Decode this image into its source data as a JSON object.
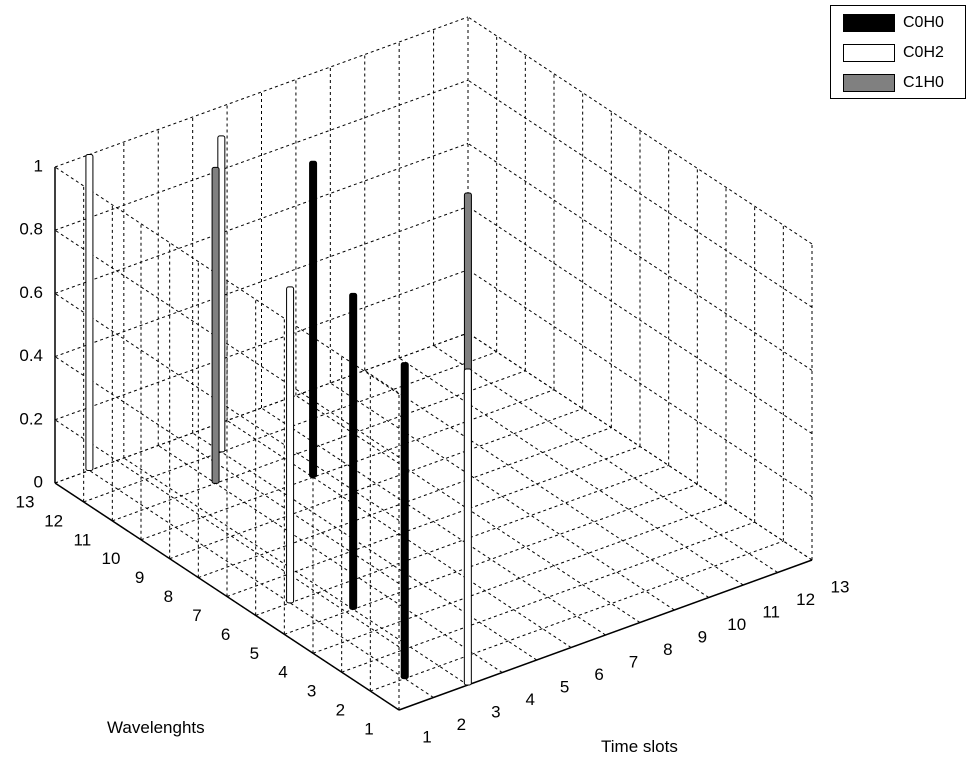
{
  "chart_data": {
    "type": "bar3d",
    "xlabel": "Time slots",
    "ylabel": "Wavelenghts",
    "zlabel": "",
    "x_ticks": [
      "1",
      "2",
      "3",
      "4",
      "5",
      "6",
      "7",
      "8",
      "9",
      "10",
      "11",
      "12",
      "13"
    ],
    "y_ticks": [
      "1",
      "2",
      "3",
      "4",
      "5",
      "6",
      "7",
      "8",
      "9",
      "10",
      "11",
      "12",
      "13"
    ],
    "z_ticks": [
      "0",
      "0.2",
      "0.4",
      "0.6",
      "0.8",
      "1"
    ],
    "zlim": [
      0,
      1
    ],
    "grid": true,
    "legend_position": "top-right",
    "series": [
      {
        "name": "C0H0",
        "color": "#000000",
        "points": [
          {
            "x": 2,
            "y": 2,
            "z": 1
          },
          {
            "x": 3,
            "y": 5,
            "z": 1
          },
          {
            "x": 6,
            "y": 10,
            "z": 1
          }
        ]
      },
      {
        "name": "C0H2",
        "color": "#ffffff",
        "points": [
          {
            "x": 2,
            "y": 6,
            "z": 1
          },
          {
            "x": 2,
            "y": 13,
            "z": 1
          },
          {
            "x": 5,
            "y": 12,
            "z": 1
          },
          {
            "x": 3,
            "y": 1,
            "z": 1
          }
        ]
      },
      {
        "name": "C1H0",
        "color": "#808080",
        "points": [
          {
            "x": 4,
            "y": 11,
            "z": 1
          },
          {
            "x": 8,
            "y": 7,
            "z": 1
          }
        ]
      }
    ]
  }
}
